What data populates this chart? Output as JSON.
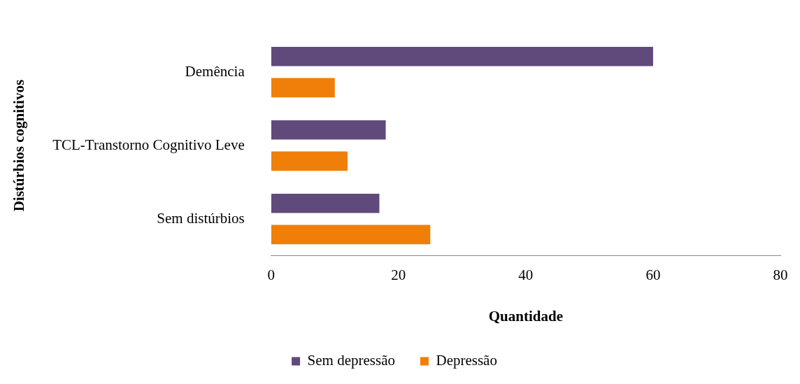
{
  "chart_data": {
    "type": "bar",
    "orientation": "horizontal",
    "xlabel": "Quantidade",
    "ylabel": "Distúrbios cognitivos",
    "categories": [
      "Demência",
      "TCL-Transtorno Cognitivo Leve",
      "Sem distúrbios"
    ],
    "series": [
      {
        "name": "Sem depressão",
        "color": "#604a7b",
        "values": [
          60,
          18,
          17
        ]
      },
      {
        "name": "Depressão",
        "color": "#f07f0a",
        "values": [
          10,
          12,
          25
        ]
      }
    ],
    "xlim": [
      0,
      80
    ],
    "xticks": [
      0,
      20,
      40,
      60,
      80
    ],
    "grid": false,
    "legend": "bottom"
  }
}
